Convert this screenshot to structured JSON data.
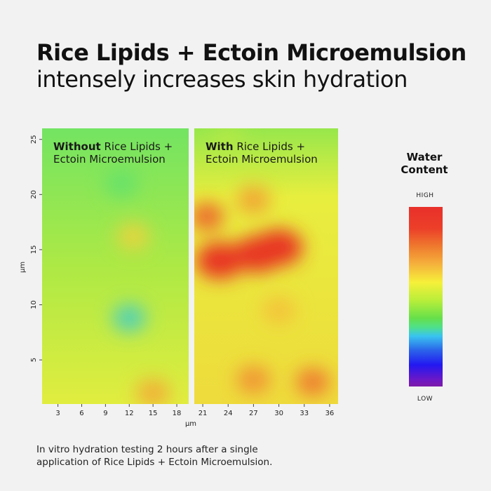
{
  "header": {
    "title": "Rice Lipids + Ectoin Microemulsion",
    "subtitle": "intensely increases skin hydration"
  },
  "panels": {
    "left": {
      "label_bold": "Without",
      "label_rest_1": " Rice Lipids +",
      "label_rest_2": "Ectoin Microemulsion"
    },
    "right": {
      "label_bold": "With",
      "label_rest_1": " Rice Lipids +",
      "label_rest_2": "Ectoin Microemulsion"
    }
  },
  "legend": {
    "title_line1": "Water",
    "title_line2": "Content",
    "high_label": "HIGH",
    "low_label": "LOW"
  },
  "footnote": {
    "line1": "In vitro hydration testing 2 hours after a single",
    "line2": "application of Rice Lipids + Ectoin Microemulsion."
  },
  "colors": {
    "background": "#f2f2f2",
    "base_green_left": "#9ee84a",
    "base_yellow_right": "#e8ee48",
    "hot_red": "#ea2e22",
    "orange": "#f08a32"
  },
  "chart_data": {
    "type": "heatmap",
    "xlabel": "µm",
    "ylabel": "µm",
    "x_ticks_left": [
      3,
      6,
      9,
      12,
      15,
      18
    ],
    "x_ticks_right": [
      21,
      24,
      27,
      30,
      33,
      36
    ],
    "y_ticks": [
      5,
      10,
      15,
      20,
      25
    ],
    "xlim_left": [
      1,
      19.5
    ],
    "xlim_right": [
      20,
      37
    ],
    "ylim": [
      1,
      26
    ],
    "colorscale": "water content, LOW (violet/blue) to HIGH (red)",
    "series": [
      {
        "name": "Without",
        "base_level": 0.45,
        "hotspots": [
          {
            "x": 12,
            "y": 8.8,
            "level": 0.32
          },
          {
            "x": 12.5,
            "y": 16.2,
            "level": 0.62
          },
          {
            "x": 15,
            "y": 2.0,
            "level": 0.7
          },
          {
            "x": 11,
            "y": 21,
            "level": 0.38
          }
        ]
      },
      {
        "name": "With",
        "base_level": 0.6,
        "hotspots": [
          {
            "x": 23,
            "y": 14.0,
            "level": 0.95
          },
          {
            "x": 27.5,
            "y": 14.6,
            "level": 0.95
          },
          {
            "x": 30,
            "y": 15.2,
            "level": 0.95
          },
          {
            "x": 21.5,
            "y": 18.0,
            "level": 0.85
          },
          {
            "x": 27,
            "y": 19.5,
            "level": 0.72
          },
          {
            "x": 34,
            "y": 3.0,
            "level": 0.8
          },
          {
            "x": 27,
            "y": 3.2,
            "level": 0.75
          },
          {
            "x": 30,
            "y": 9.5,
            "level": 0.66
          },
          {
            "x": 24,
            "y": 25.0,
            "level": 0.48
          }
        ]
      }
    ]
  }
}
